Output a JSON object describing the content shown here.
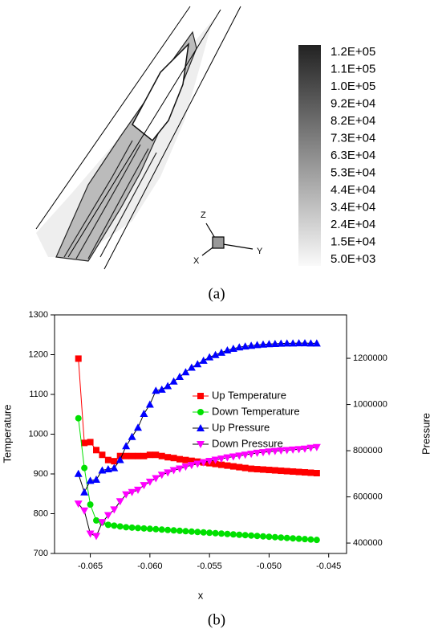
{
  "panel_a": {
    "legend_labels": [
      "1.2E+05",
      "1.1E+05",
      "1.0E+05",
      "9.2E+04",
      "8.2E+04",
      "7.3E+04",
      "6.3E+04",
      "5.3E+04",
      "4.4E+04",
      "3.4E+04",
      "2.4E+04",
      "1.5E+04",
      "5.0E+03"
    ],
    "axes": [
      "Z",
      "Y",
      "X"
    ],
    "caption": "(a)"
  },
  "chart_data": {
    "type": "line",
    "caption": "(b)",
    "x_label": "x",
    "y_label": "Temperature",
    "y2_label": "Pressure",
    "x": [
      -0.066,
      -0.0655,
      -0.065,
      -0.0645,
      -0.064,
      -0.0635,
      -0.063,
      -0.0625,
      -0.062,
      -0.0615,
      -0.061,
      -0.0605,
      -0.06,
      -0.0595,
      -0.059,
      -0.0585,
      -0.058,
      -0.0575,
      -0.057,
      -0.0565,
      -0.056,
      -0.0555,
      -0.055,
      -0.0545,
      -0.054,
      -0.0535,
      -0.053,
      -0.0525,
      -0.052,
      -0.0515,
      -0.051,
      -0.0505,
      -0.05,
      -0.0495,
      -0.049,
      -0.0485,
      -0.048,
      -0.0475,
      -0.047,
      -0.0465,
      -0.046
    ],
    "series": [
      {
        "name": "Up Temperature",
        "color": "#ff0000",
        "marker": "square",
        "values": [
          1190,
          978,
          980,
          960,
          948,
          935,
          932,
          945,
          945,
          945,
          945,
          945,
          948,
          948,
          945,
          942,
          940,
          937,
          935,
          933,
          931,
          929,
          927,
          925,
          923,
          921,
          919,
          917,
          915,
          913,
          912,
          911,
          910,
          909,
          908,
          907,
          906,
          905,
          904,
          903,
          902
        ]
      },
      {
        "name": "Down Temperature",
        "color": "#00e000",
        "marker": "circle",
        "values": [
          1040,
          915,
          823,
          783,
          778,
          772,
          770,
          768,
          766,
          765,
          764,
          763,
          762,
          761,
          760,
          759,
          758,
          757,
          756,
          755,
          754,
          753,
          752,
          751,
          750,
          749,
          748,
          747,
          746,
          745,
          744,
          743,
          742,
          741,
          740,
          739,
          738,
          737,
          736,
          735,
          734
        ]
      },
      {
        "name": "Up Pressure",
        "color": "#0000ff",
        "marker": "triangle-up",
        "axis": "y2",
        "values": [
          700000,
          620000,
          670000,
          675000,
          715000,
          720000,
          725000,
          760000,
          820000,
          860000,
          900000,
          960000,
          1000000,
          1060000,
          1065000,
          1080000,
          1100000,
          1120000,
          1140000,
          1160000,
          1175000,
          1190000,
          1205000,
          1215000,
          1225000,
          1235000,
          1242000,
          1248000,
          1252000,
          1255000,
          1258000,
          1260000,
          1262000,
          1263000,
          1264000,
          1265000,
          1265000,
          1266000,
          1266000,
          1265000,
          1265000
        ]
      },
      {
        "name": "Down Pressure",
        "color": "#ff00ff",
        "marker": "triangle-down",
        "axis": "y2",
        "values": [
          570000,
          540000,
          440000,
          430000,
          490000,
          520000,
          545000,
          580000,
          610000,
          620000,
          630000,
          650000,
          665000,
          680000,
          695000,
          705000,
          715000,
          722000,
          730000,
          737000,
          743000,
          749000,
          755000,
          760000,
          765000,
          770000,
          774000,
          778000,
          782000,
          786000,
          790000,
          793000,
          796000,
          798000,
          800000,
          802000,
          804000,
          806000,
          808000,
          812000,
          815000
        ]
      }
    ],
    "xlim": [
      -0.068,
      -0.0435
    ],
    "xticks": [
      -0.065,
      {
        "value": -0.06,
        "label": "-0.060"
      },
      -0.055,
      {
        "value": -0.05,
        "label": "-0.050"
      },
      -0.045
    ],
    "ylim": [
      700,
      1300
    ],
    "yticks": [
      700,
      800,
      900,
      1000,
      1100,
      1200,
      1300
    ],
    "y2lim": [
      355000,
      1388000
    ],
    "y2ticks": [
      400000,
      600000,
      800000,
      1000000,
      1200000
    ],
    "legend_position": "upper center"
  }
}
